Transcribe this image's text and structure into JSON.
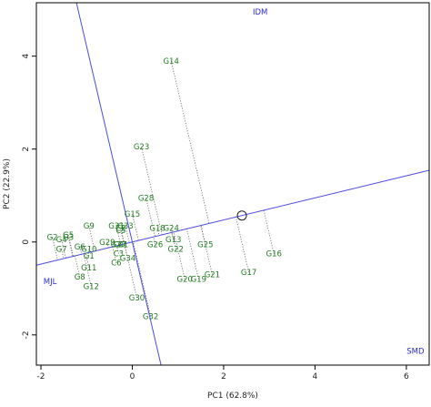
{
  "chart_data": {
    "type": "scatter",
    "title": "",
    "xlabel": "PC1 (62.8%)",
    "ylabel": "PC2 (22.9%)",
    "xlim": [
      -2.1,
      6.5
    ],
    "ylim": [
      -2.65,
      5.15
    ],
    "xticks": [
      -2,
      0,
      2,
      4,
      6
    ],
    "yticks": [
      -2,
      0,
      2,
      4
    ],
    "grid": false,
    "colors": {
      "genotypes": "#1f7a1f",
      "environments": "#2a2acc",
      "axis_lines": "#4a4ae0",
      "projections": "#666666"
    },
    "average_environment": {
      "x": 2.4,
      "y": 0.57
    },
    "environments": [
      {
        "name": "IDM",
        "x": 2.8,
        "y": 4.95
      },
      {
        "name": "MJL",
        "x": -1.8,
        "y": -0.85
      },
      {
        "name": "SMD",
        "x": 6.2,
        "y": -2.35
      }
    ],
    "genotypes": [
      {
        "name": "G1",
        "x": -0.95,
        "y": -0.3
      },
      {
        "name": "G2",
        "x": -1.75,
        "y": 0.1
      },
      {
        "name": "G3",
        "x": -1.4,
        "y": 0.1
      },
      {
        "name": "G4",
        "x": -1.55,
        "y": 0.05
      },
      {
        "name": "G5",
        "x": -1.4,
        "y": 0.15
      },
      {
        "name": "G6",
        "x": -1.15,
        "y": -0.1
      },
      {
        "name": "G7",
        "x": -1.55,
        "y": -0.15
      },
      {
        "name": "G8",
        "x": -1.15,
        "y": -0.75
      },
      {
        "name": "G9",
        "x": -0.95,
        "y": 0.35
      },
      {
        "name": "G10",
        "x": -0.95,
        "y": -0.15
      },
      {
        "name": "G11",
        "x": -0.95,
        "y": -0.55
      },
      {
        "name": "G12",
        "x": -0.9,
        "y": -0.95
      },
      {
        "name": "G13",
        "x": 0.9,
        "y": 0.05
      },
      {
        "name": "G14",
        "x": 0.85,
        "y": 3.9
      },
      {
        "name": "G15",
        "x": 0.0,
        "y": 0.6
      },
      {
        "name": "G16",
        "x": 3.1,
        "y": -0.25
      },
      {
        "name": "G17",
        "x": 2.55,
        "y": -0.65
      },
      {
        "name": "G18",
        "x": 0.55,
        "y": 0.3
      },
      {
        "name": "G19",
        "x": 1.45,
        "y": -0.8
      },
      {
        "name": "G20",
        "x": 1.15,
        "y": -0.8
      },
      {
        "name": "G21",
        "x": 1.75,
        "y": -0.7
      },
      {
        "name": "G22",
        "x": 0.95,
        "y": -0.15
      },
      {
        "name": "G23",
        "x": 0.2,
        "y": 2.05
      },
      {
        "name": "G24",
        "x": 0.85,
        "y": 0.3
      },
      {
        "name": "G25",
        "x": 1.6,
        "y": -0.05
      },
      {
        "name": "G26",
        "x": 0.5,
        "y": -0.05
      },
      {
        "name": "G27",
        "x": -0.3,
        "y": -0.05
      },
      {
        "name": "G28",
        "x": 0.3,
        "y": 0.95
      },
      {
        "name": "G29",
        "x": -0.55,
        "y": 0.0
      },
      {
        "name": "G30",
        "x": 0.1,
        "y": -1.2
      },
      {
        "name": "G31",
        "x": -0.35,
        "y": 0.35
      },
      {
        "name": "G32",
        "x": 0.4,
        "y": -1.6
      },
      {
        "name": "G33",
        "x": -0.15,
        "y": 0.35
      },
      {
        "name": "G34",
        "x": -0.1,
        "y": -0.35
      },
      {
        "name": "C1",
        "x": -0.2,
        "y": -0.05
      },
      {
        "name": "C2",
        "x": -0.25,
        "y": 0.3
      },
      {
        "name": "C3",
        "x": -0.3,
        "y": -0.25
      },
      {
        "name": "C4",
        "x": -0.3,
        "y": -0.05
      },
      {
        "name": "C5",
        "x": -0.25,
        "y": 0.25
      },
      {
        "name": "C6",
        "x": -0.35,
        "y": -0.45
      }
    ]
  }
}
